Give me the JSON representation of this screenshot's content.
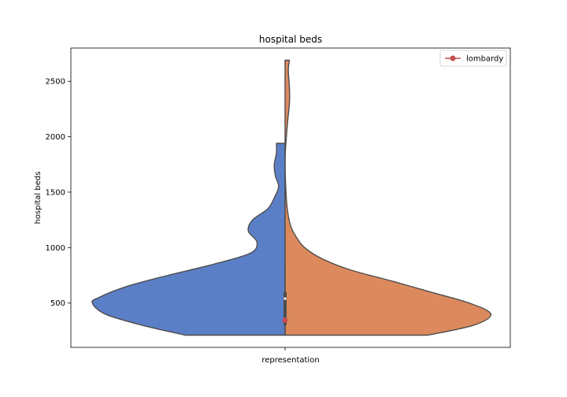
{
  "chart_data": {
    "type": "violin",
    "title": "hospital beds",
    "xlabel": "",
    "ylabel": "hospital beds",
    "categories": [
      "representation"
    ],
    "ylim": [
      100,
      2800
    ],
    "yticks": [
      500,
      1000,
      1500,
      2000,
      2500
    ],
    "split": true,
    "colors": {
      "left": "#5b7fc6",
      "right": "#dc8a5d",
      "outline": "#4d4d4d",
      "marker": "#c44e52",
      "box": "#4d4d4d"
    },
    "series": [
      {
        "side": "left",
        "min": 210,
        "max": 1940,
        "density": [
          [
            210,
            0.46
          ],
          [
            300,
            0.66
          ],
          [
            400,
            0.83
          ],
          [
            500,
            0.89
          ],
          [
            550,
            0.86
          ],
          [
            650,
            0.73
          ],
          [
            750,
            0.54
          ],
          [
            850,
            0.33
          ],
          [
            950,
            0.16
          ],
          [
            1050,
            0.13
          ],
          [
            1150,
            0.17
          ],
          [
            1250,
            0.15
          ],
          [
            1350,
            0.08
          ],
          [
            1450,
            0.05
          ],
          [
            1550,
            0.03
          ],
          [
            1650,
            0.045
          ],
          [
            1750,
            0.05
          ],
          [
            1850,
            0.04
          ],
          [
            1940,
            0.04
          ]
        ]
      },
      {
        "side": "right",
        "min": 210,
        "max": 2690,
        "density": [
          [
            210,
            0.66
          ],
          [
            300,
            0.87
          ],
          [
            400,
            0.95
          ],
          [
            500,
            0.85
          ],
          [
            600,
            0.67
          ],
          [
            700,
            0.49
          ],
          [
            800,
            0.3
          ],
          [
            900,
            0.17
          ],
          [
            1000,
            0.09
          ],
          [
            1100,
            0.05
          ],
          [
            1200,
            0.025
          ],
          [
            1350,
            0.01
          ],
          [
            1550,
            0.003
          ],
          [
            1800,
            0.0
          ],
          [
            2100,
            0.01
          ],
          [
            2300,
            0.02
          ],
          [
            2450,
            0.02
          ],
          [
            2600,
            0.015
          ],
          [
            2690,
            0.02
          ]
        ]
      }
    ],
    "box": {
      "q1": 300,
      "median": 540,
      "q3": 600,
      "whisker_low": 210,
      "whisker_high": 870
    },
    "marker": {
      "label": "lombardy",
      "value": 345
    },
    "legend": {
      "entries": [
        "lombardy"
      ],
      "placement": "top-right"
    }
  }
}
